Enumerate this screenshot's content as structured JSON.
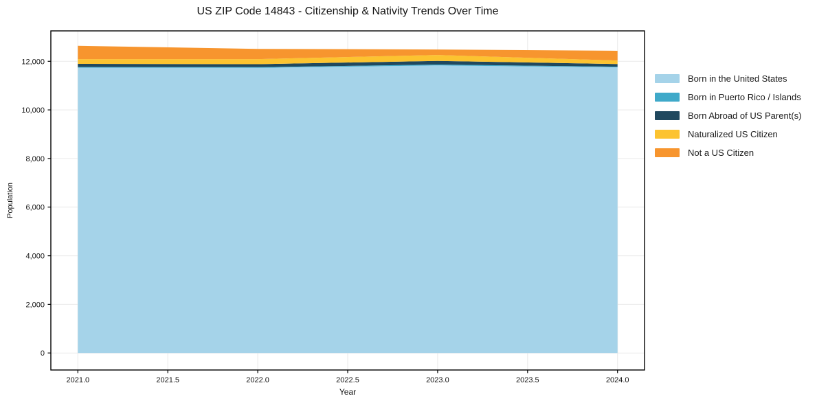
{
  "chart_data": {
    "type": "area",
    "stacked": true,
    "title": "US ZIP Code 14843 - Citizenship & Nativity Trends Over Time",
    "xlabel": "Year",
    "ylabel": "Population",
    "x": [
      2021,
      2022,
      2023,
      2024
    ],
    "series": [
      {
        "name": "Born in the United States",
        "color": "#a5d3e9",
        "values": [
          11740,
          11730,
          11830,
          11750
        ]
      },
      {
        "name": "Born in Puerto Rico / Islands",
        "color": "#3fa9c9",
        "values": [
          25,
          30,
          35,
          30
        ]
      },
      {
        "name": "Born Abroad of US Parent(s)",
        "color": "#20485e",
        "values": [
          130,
          120,
          150,
          105
        ]
      },
      {
        "name": "Naturalized US Citizen",
        "color": "#fcc330",
        "values": [
          195,
          210,
          245,
          145
        ]
      },
      {
        "name": "Not a US Citizen",
        "color": "#f7952e",
        "values": [
          545,
          420,
          225,
          400
        ]
      }
    ],
    "xlim": [
      2020.85,
      2024.15
    ],
    "ylim": [
      -700,
      13250
    ],
    "xticks": [
      2021.0,
      2021.5,
      2022.0,
      2022.5,
      2023.0,
      2023.5,
      2024.0
    ],
    "yticks": [
      0,
      2000,
      4000,
      6000,
      8000,
      10000,
      12000
    ],
    "grid": true,
    "grid_color": "#e9e9e9",
    "frame_color": "#000000",
    "tick_label_color": "#101010",
    "legend_position": "right"
  }
}
